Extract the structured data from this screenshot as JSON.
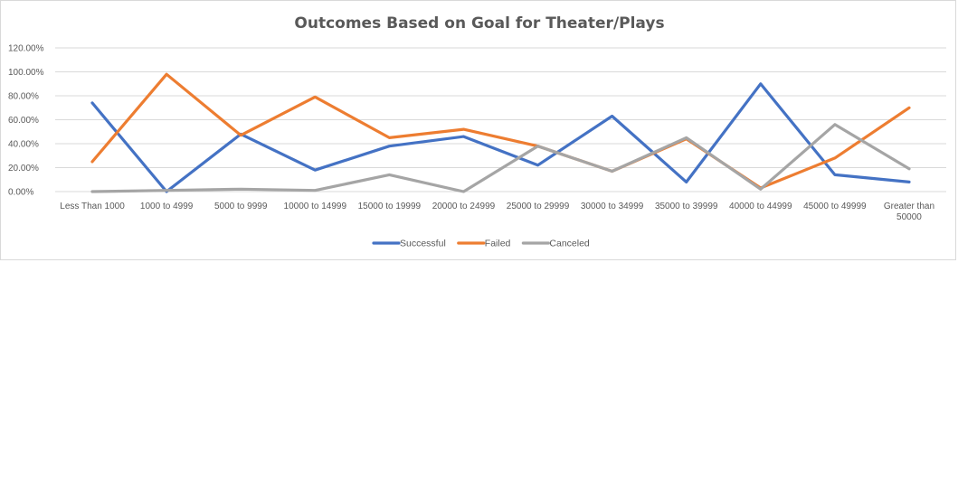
{
  "chart_data": {
    "type": "line",
    "title": "Outcomes Based on Goal for Theater/Plays",
    "xlabel": "",
    "ylabel": "",
    "ylim": [
      0,
      120
    ],
    "yticks": [
      "0.00%",
      "20.00%",
      "40.00%",
      "60.00%",
      "80.00%",
      "100.00%",
      "120.00%"
    ],
    "grid": true,
    "legend_position": "bottom",
    "categories": [
      "Less Than 1000",
      "1000 to 4999",
      "5000 to 9999",
      "10000 to 14999",
      "15000 to 19999",
      "20000 to 24999",
      "25000 to 29999",
      "30000 to 34999",
      "35000 to 39999",
      "40000 to 44999",
      "45000 to 49999",
      "Greater than 50000"
    ],
    "category_lines": [
      [
        "Less Than 1000"
      ],
      [
        "1000 to 4999"
      ],
      [
        "5000 to 9999"
      ],
      [
        "10000 to 14999"
      ],
      [
        "15000 to 19999"
      ],
      [
        "20000 to 24999"
      ],
      [
        "25000 to 29999"
      ],
      [
        "30000 to 34999"
      ],
      [
        "35000 to 39999"
      ],
      [
        "40000 to 44999"
      ],
      [
        "45000 to 49999"
      ],
      [
        "Greater than",
        "50000"
      ]
    ],
    "series": [
      {
        "name": "Successful",
        "color": "#4472c4",
        "values": [
          74,
          0,
          48,
          18,
          38,
          46,
          22,
          63,
          8,
          90,
          14,
          8
        ]
      },
      {
        "name": "Failed",
        "color": "#ed7d31",
        "values": [
          25,
          98,
          47,
          79,
          45,
          52,
          38,
          17,
          44,
          3,
          28,
          70
        ]
      },
      {
        "name": "Canceled",
        "color": "#a5a5a5",
        "values": [
          0,
          1,
          2,
          1,
          14,
          0,
          38,
          17,
          45,
          2,
          56,
          19
        ]
      }
    ]
  }
}
